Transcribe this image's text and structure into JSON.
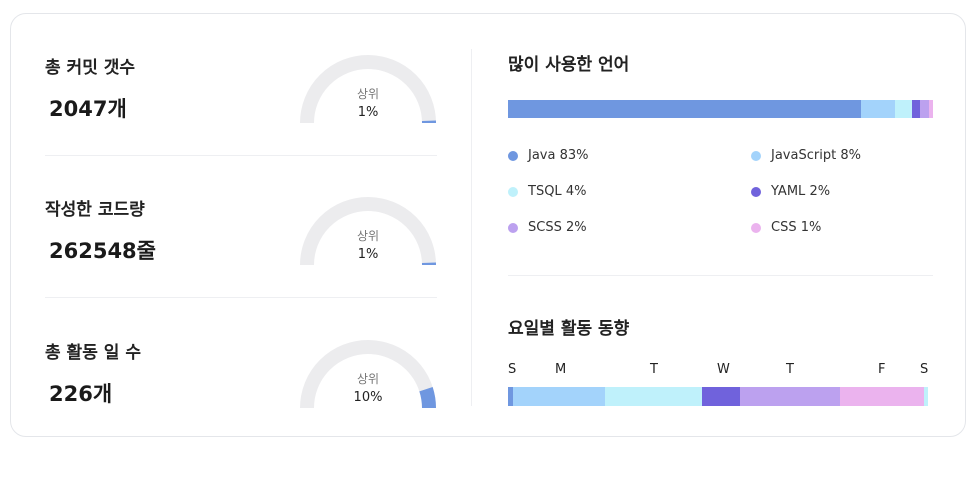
{
  "stats": [
    {
      "label": "총 커밋 갯수",
      "value": "2047개",
      "caption": "상위",
      "percent_text": "1%",
      "percentile": 1
    },
    {
      "label": "작성한 코드량",
      "value": "262548줄",
      "caption": "상위",
      "percent_text": "1%",
      "percentile": 1
    },
    {
      "label": "총 활동 일 수",
      "value": "226개",
      "caption": "상위",
      "percent_text": "10%",
      "percentile": 10
    }
  ],
  "languages": {
    "title": "많이 사용한 언어",
    "items": [
      {
        "name": "Java",
        "percent_text": "83%",
        "share": 83,
        "color": "#6f97e0"
      },
      {
        "name": "JavaScript",
        "percent_text": "8%",
        "share": 8,
        "color": "#a3d3fb"
      },
      {
        "name": "TSQL",
        "percent_text": "4%",
        "share": 4,
        "color": "#bff1fb"
      },
      {
        "name": "YAML",
        "percent_text": "2%",
        "share": 2,
        "color": "#7062dc"
      },
      {
        "name": "SCSS",
        "percent_text": "2%",
        "share": 2,
        "color": "#bca1ef"
      },
      {
        "name": "CSS",
        "percent_text": "1%",
        "share": 1,
        "color": "#ebb3ee"
      }
    ]
  },
  "weekly": {
    "title": "요일별 활동 동향",
    "days": [
      {
        "label": "S",
        "share": 1.2,
        "color": "#6f97e0"
      },
      {
        "label": "M",
        "share": 21.9,
        "color": "#a3d3fb"
      },
      {
        "label": "T",
        "share": 23.1,
        "color": "#bff1fb"
      },
      {
        "label": "W",
        "share": 9.0,
        "color": "#7062dc"
      },
      {
        "label": "T",
        "share": 23.8,
        "color": "#bca1ef"
      },
      {
        "label": "F",
        "share": 20.0,
        "color": "#ebb3ee"
      },
      {
        "label": "S",
        "share": 1.0,
        "color": "#bff1fb"
      }
    ]
  },
  "colors": {
    "gauge_track": "#ececee",
    "gauge_fill": "#6f97e0"
  }
}
